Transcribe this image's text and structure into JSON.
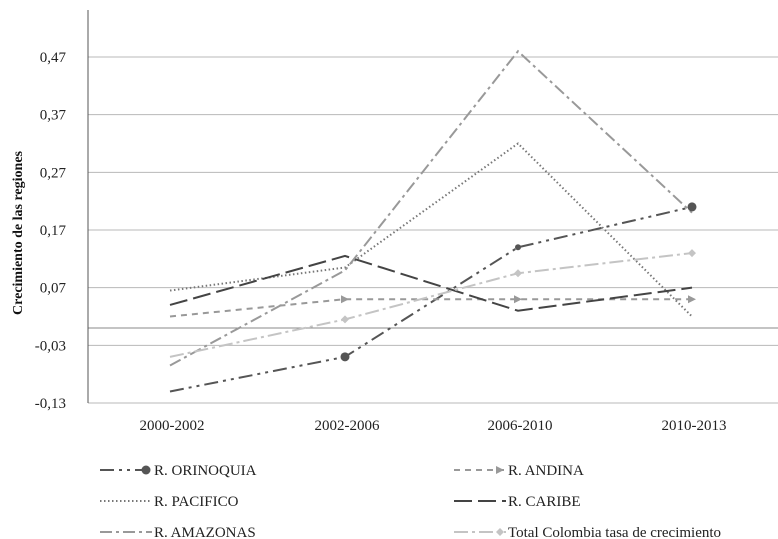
{
  "chart_data": {
    "type": "line",
    "title": "",
    "xlabel": "",
    "ylabel": "Crecimiento de las regiones",
    "categories": [
      "2000-2002",
      "2002-2006",
      "2006-2010",
      "2010-2013"
    ],
    "yticks": [
      "0,47",
      "0,37",
      "0,27",
      "0,17",
      "0,07",
      "-0,03",
      "-0,13"
    ],
    "ytick_values": [
      0.47,
      0.37,
      0.27,
      0.17,
      0.07,
      -0.03,
      -0.13
    ],
    "ylim": [
      -0.13,
      0.57
    ],
    "grid": true,
    "legend_position": "bottom",
    "series": [
      {
        "name": "R. ORINOQUIA",
        "values": [
          -0.11,
          -0.05,
          0.14,
          0.21
        ],
        "color": "#555555",
        "dash": "14 5 3 5 3 5",
        "marker": "circle",
        "marker_on_last_only": false
      },
      {
        "name": "R. ANDINA",
        "values": [
          0.02,
          0.05,
          0.05,
          0.05
        ],
        "color": "#999999",
        "dash": "6 5",
        "marker": "arrow"
      },
      {
        "name": "R. PACIFICO",
        "values": [
          0.065,
          0.105,
          0.32,
          0.02
        ],
        "color": "#777777",
        "dash": "1.5 2.5",
        "marker": "none"
      },
      {
        "name": "R. CARIBE",
        "values": [
          0.04,
          0.125,
          0.03,
          0.07
        ],
        "color": "#444444",
        "dash": "18 6",
        "marker": "none"
      },
      {
        "name": "R. AMAZONAS",
        "values": [
          -0.065,
          0.1,
          0.48,
          0.2
        ],
        "color": "#999999",
        "dash": "12 4 3 4",
        "marker": "none"
      },
      {
        "name": "Total Colombia tasa de crecimiento",
        "values": [
          -0.05,
          0.015,
          0.095,
          0.13
        ],
        "color": "#c4c4c4",
        "dash": "14 4 3 4",
        "marker": "diamond"
      }
    ],
    "marker_points": {
      "R. ORINOQUIA": [
        1,
        2,
        3
      ],
      "R. ANDINA": [
        1,
        2,
        3
      ],
      "Total Colombia tasa de crecimiento": [
        1,
        2,
        3
      ]
    }
  }
}
